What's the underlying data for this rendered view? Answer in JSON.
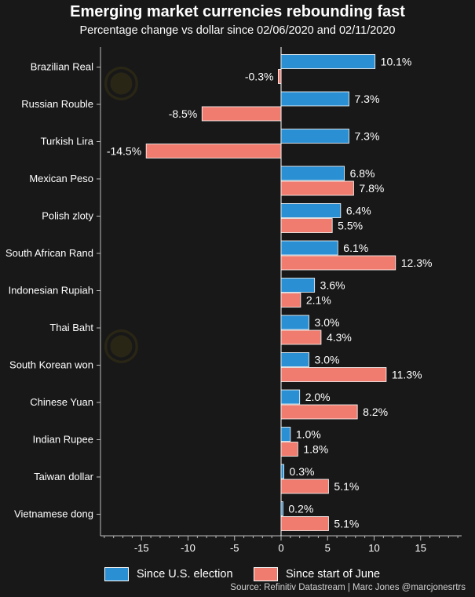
{
  "chart_data": {
    "type": "bar",
    "orientation": "horizontal",
    "title": "Emerging market currencies rebounding fast",
    "subtitle": "Percentage change vs dollar since 02/06/2020 and 02/11/2020",
    "categories": [
      "Brazilian Real",
      "Russian Rouble",
      "Turkish Lira",
      "Mexican Peso",
      "Polish zloty",
      "South African Rand",
      "Indonesian Rupiah",
      "Thai Baht",
      "South Korean won",
      "Chinese Yuan",
      "Indian Rupee",
      "Taiwan dollar",
      "Vietnamese dong"
    ],
    "series": [
      {
        "name": "Since U.S. election",
        "color": "#2b8fd3",
        "values": [
          10.1,
          7.3,
          7.3,
          6.8,
          6.4,
          6.1,
          3.6,
          3.0,
          3.0,
          2.0,
          1.0,
          0.3,
          0.2
        ],
        "labels": [
          "10.1%",
          "7.3%",
          "7.3%",
          "6.8%",
          "6.4%",
          "6.1%",
          "3.6%",
          "3.0%",
          "3.0%",
          "2.0%",
          "1.0%",
          "0.3%",
          "0.2%"
        ]
      },
      {
        "name": "Since start of June",
        "color": "#ef7c6e",
        "values": [
          -0.3,
          -8.5,
          -14.5,
          7.8,
          5.5,
          12.3,
          2.1,
          4.3,
          11.3,
          8.2,
          1.8,
          5.1,
          5.1
        ],
        "labels": [
          "-0.3%",
          "-8.5%",
          "-14.5%",
          "7.8%",
          "5.5%",
          "12.3%",
          "2.1%",
          "4.3%",
          "11.3%",
          "8.2%",
          "1.8%",
          "5.1%",
          "5.1%"
        ]
      }
    ],
    "x_ticks": [
      -15,
      -10,
      -5,
      0,
      5,
      10,
      15
    ],
    "x_tick_labels": [
      "-15",
      "-10",
      "-5",
      "0",
      "5",
      "10",
      "15"
    ],
    "xlim": [
      -19.5,
      19.5
    ],
    "grid": false,
    "legend_position": "bottom"
  },
  "source": "Source: Refinitiv Datastream | Marc Jones @marcjonesrtrs",
  "colors": {
    "background": "#181818",
    "axis": "#bdbdbd",
    "text": "#ffffff"
  }
}
